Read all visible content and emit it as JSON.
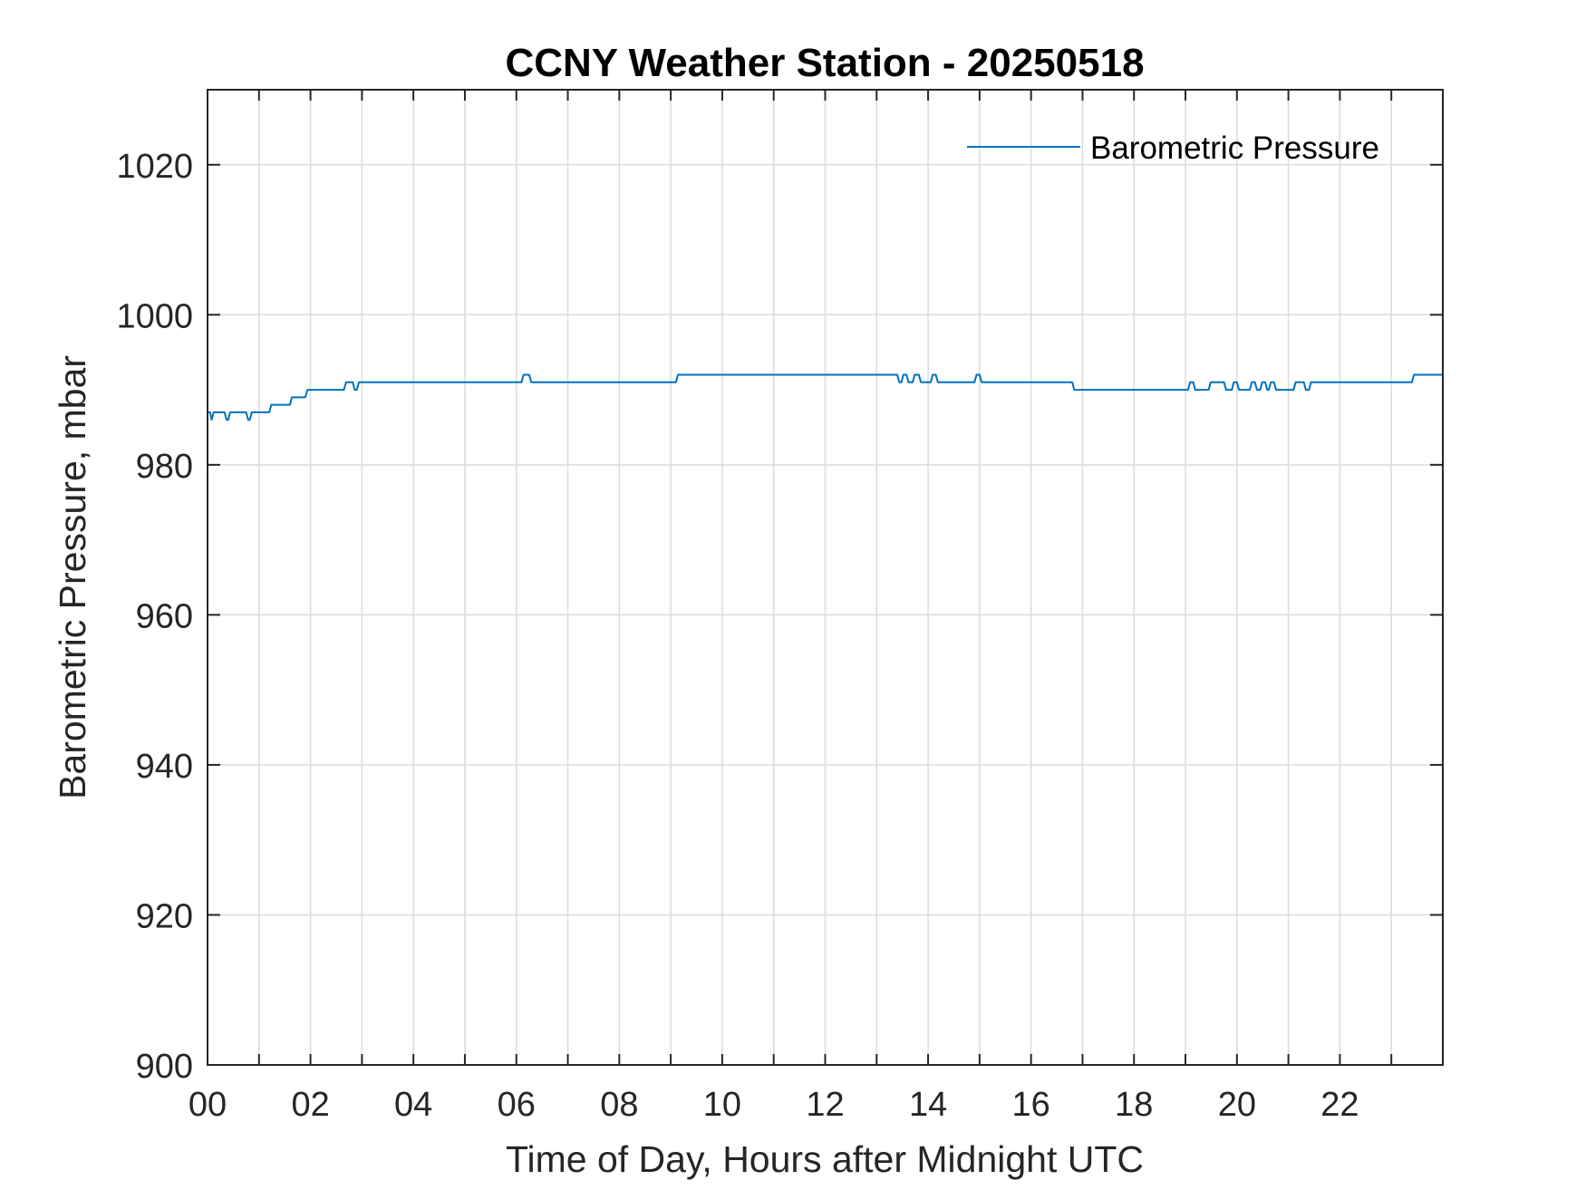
{
  "chart_data": {
    "type": "line",
    "title": "CCNY Weather Station - 20250518",
    "xlabel": "Time of Day, Hours after Midnight UTC",
    "ylabel": "Barometric Pressure, mbar",
    "xlim": [
      0,
      24
    ],
    "ylim": [
      900,
      1030
    ],
    "xticks": [
      0,
      2,
      4,
      6,
      8,
      10,
      12,
      14,
      16,
      18,
      20,
      22
    ],
    "xtick_labels": [
      "00",
      "02",
      "04",
      "06",
      "08",
      "10",
      "12",
      "14",
      "16",
      "18",
      "20",
      "22"
    ],
    "yticks": [
      900,
      920,
      940,
      960,
      980,
      1000,
      1020
    ],
    "ytick_labels": [
      "900",
      "920",
      "940",
      "960",
      "980",
      "1000",
      "1020"
    ],
    "grid": true,
    "legend_position": "top-right",
    "series": [
      {
        "name": "Barometric Pressure",
        "color": "#0072BD",
        "x": [
          0,
          0.05,
          0.08,
          0.12,
          0.33,
          0.37,
          0.4,
          0.44,
          0.75,
          0.79,
          0.82,
          0.86,
          1.2,
          1.24,
          1.6,
          1.64,
          1.9,
          1.94,
          2.65,
          2.69,
          2.82,
          2.86,
          2.9,
          2.94,
          6.1,
          6.14,
          6.25,
          6.29,
          9.1,
          9.14,
          13.4,
          13.44,
          13.48,
          13.52,
          13.58,
          13.62,
          13.7,
          13.74,
          13.82,
          13.86,
          14.05,
          14.09,
          14.15,
          14.19,
          14.9,
          14.94,
          15.0,
          15.04,
          16.8,
          16.84,
          19.05,
          19.09,
          19.15,
          19.19,
          19.45,
          19.49,
          19.75,
          19.79,
          19.9,
          19.94,
          20.0,
          20.04,
          20.25,
          20.29,
          20.35,
          20.39,
          20.45,
          20.49,
          20.55,
          20.59,
          20.62,
          20.66,
          20.72,
          20.76,
          21.1,
          21.14,
          21.3,
          21.34,
          21.4,
          21.44,
          23.4,
          23.44,
          24
        ],
        "y": [
          987,
          987,
          986,
          987,
          987,
          986,
          986,
          987,
          987,
          986,
          986,
          987,
          987,
          988,
          988,
          989,
          989,
          990,
          990,
          991,
          991,
          990,
          990,
          991,
          991,
          992,
          992,
          991,
          991,
          992,
          992,
          991,
          991,
          992,
          992,
          991,
          991,
          992,
          992,
          991,
          991,
          992,
          992,
          991,
          991,
          992,
          992,
          991,
          991,
          990,
          990,
          991,
          991,
          990,
          990,
          991,
          991,
          990,
          990,
          991,
          991,
          990,
          990,
          991,
          991,
          990,
          990,
          991,
          991,
          990,
          990,
          991,
          991,
          990,
          990,
          991,
          991,
          990,
          990,
          991,
          991,
          992,
          992
        ]
      }
    ]
  }
}
